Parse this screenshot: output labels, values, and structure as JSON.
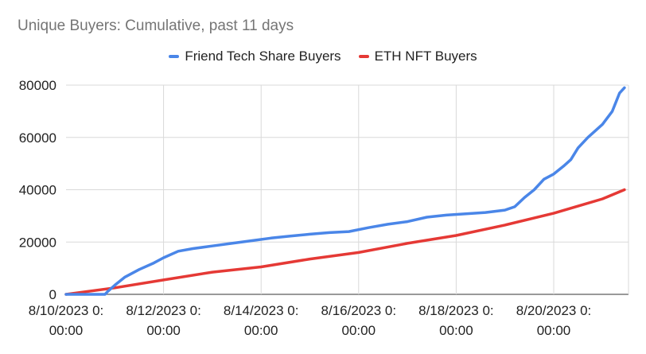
{
  "chart_data": {
    "type": "line",
    "title": "Unique Buyers: Cumulative, past 11 days",
    "xlabel": "",
    "ylabel": "",
    "x_range": [
      "8/10/2023 0:00:00",
      "8/21/2023 12:00:00"
    ],
    "ylim": [
      0,
      80000
    ],
    "y_ticks": [
      "0",
      "20000",
      "40000",
      "60000",
      "80000"
    ],
    "x_ticks": [
      {
        "line1": "8/10/2023 0:",
        "line2": "00:00",
        "day": 0
      },
      {
        "line1": "8/12/2023 0:",
        "line2": "00:00",
        "day": 2
      },
      {
        "line1": "8/14/2023 0:",
        "line2": "00:00",
        "day": 4
      },
      {
        "line1": "8/16/2023 0:",
        "line2": "00:00",
        "day": 6
      },
      {
        "line1": "8/18/2023 0:",
        "line2": "00:00",
        "day": 8
      },
      {
        "line1": "8/20/2023 0:",
        "line2": "00:00",
        "day": 10
      }
    ],
    "grid": true,
    "legend_position": "top",
    "series": [
      {
        "name": "Friend Tech Share Buyers",
        "color": "#4a86e8",
        "points": [
          [
            0,
            0
          ],
          [
            0.4,
            0
          ],
          [
            0.8,
            0
          ],
          [
            0.85,
            1000
          ],
          [
            1,
            3500
          ],
          [
            1.2,
            6500
          ],
          [
            1.5,
            9500
          ],
          [
            1.8,
            12000
          ],
          [
            2,
            14000
          ],
          [
            2.3,
            16500
          ],
          [
            2.6,
            17500
          ],
          [
            3,
            18500
          ],
          [
            3.4,
            19500
          ],
          [
            3.8,
            20500
          ],
          [
            4.2,
            21500
          ],
          [
            4.6,
            22300
          ],
          [
            5,
            23000
          ],
          [
            5.4,
            23600
          ],
          [
            5.8,
            24000
          ],
          [
            6.2,
            25500
          ],
          [
            6.6,
            26800
          ],
          [
            7,
            27800
          ],
          [
            7.4,
            29500
          ],
          [
            7.8,
            30300
          ],
          [
            8.2,
            30800
          ],
          [
            8.6,
            31300
          ],
          [
            9,
            32200
          ],
          [
            9.2,
            33500
          ],
          [
            9.4,
            37000
          ],
          [
            9.6,
            40000
          ],
          [
            9.8,
            44000
          ],
          [
            10,
            46000
          ],
          [
            10.2,
            49000
          ],
          [
            10.35,
            51500
          ],
          [
            10.5,
            56000
          ],
          [
            10.7,
            60000
          ],
          [
            11,
            65000
          ],
          [
            11.2,
            70000
          ],
          [
            11.35,
            77000
          ],
          [
            11.45,
            79000
          ]
        ]
      },
      {
        "name": "ETH NFT Buyers",
        "color": "#e53935",
        "points": [
          [
            0,
            0
          ],
          [
            1,
            2500
          ],
          [
            2,
            5500
          ],
          [
            3,
            8500
          ],
          [
            4,
            10500
          ],
          [
            5,
            13500
          ],
          [
            6,
            16000
          ],
          [
            7,
            19500
          ],
          [
            8,
            22500
          ],
          [
            9,
            26500
          ],
          [
            10,
            31000
          ],
          [
            11,
            36500
          ],
          [
            11.45,
            40000
          ]
        ]
      }
    ]
  }
}
